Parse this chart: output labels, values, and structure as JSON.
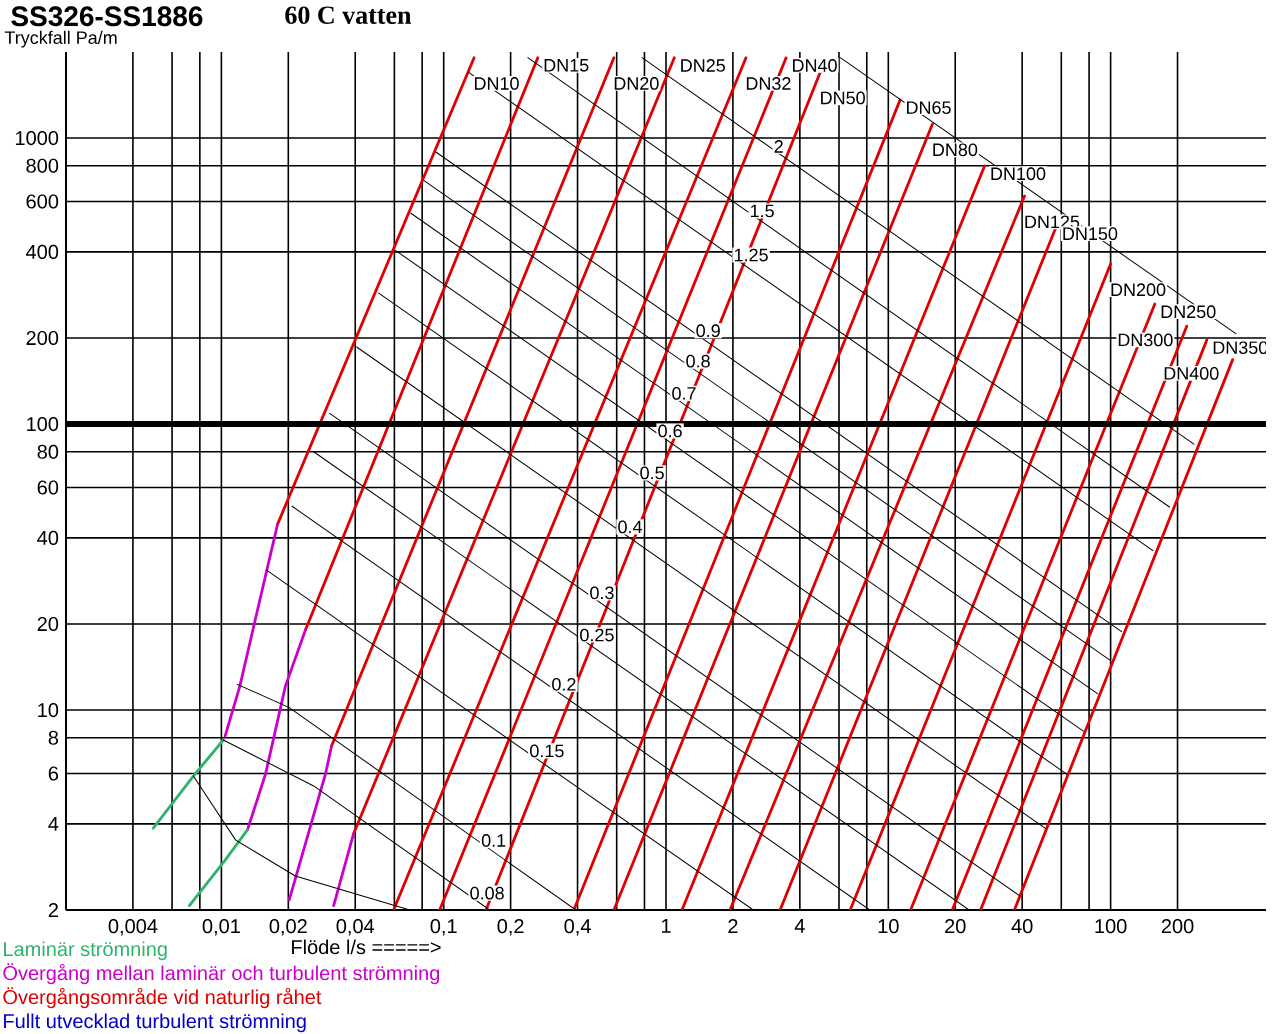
{
  "chart_data": {
    "type": "line",
    "title": "SS326-SS1886",
    "subtitle": "60 C vatten",
    "xlabel": "Flöde   l/s =====>",
    "ylabel": "Tryckfall Pa/m",
    "log": "xy",
    "grid": true,
    "xlim": [
      0.002,
      500
    ],
    "ylim": [
      2,
      2000
    ],
    "xticks": [
      {
        "value": 0.004,
        "label": "0,004"
      },
      {
        "value": 0.006,
        "label": null
      },
      {
        "value": 0.008,
        "label": null
      },
      {
        "value": 0.01,
        "label": "0,01"
      },
      {
        "value": 0.02,
        "label": "0,02"
      },
      {
        "value": 0.04,
        "label": "0,04"
      },
      {
        "value": 0.06,
        "label": null
      },
      {
        "value": 0.08,
        "label": null
      },
      {
        "value": 0.1,
        "label": "0,1"
      },
      {
        "value": 0.2,
        "label": "0,2"
      },
      {
        "value": 0.4,
        "label": "0,4"
      },
      {
        "value": 0.6,
        "label": null
      },
      {
        "value": 0.8,
        "label": null
      },
      1,
      2,
      4,
      {
        "value": 6,
        "label": null
      },
      {
        "value": 8,
        "label": null
      },
      10,
      20,
      40,
      {
        "value": 60,
        "label": null
      },
      {
        "value": 80,
        "label": null
      },
      100,
      200
    ],
    "yticks": [
      2,
      4,
      6,
      8,
      10,
      20,
      40,
      60,
      80,
      100,
      200,
      400,
      600,
      800,
      1000
    ],
    "ref_lines": [
      {
        "axis": "y",
        "value": 100
      }
    ],
    "series": [
      {
        "name": "DN10",
        "color": "#e00000",
        "x": [
          0.0179,
          0.137
        ],
        "values": [
          44.7,
          1910
        ]
      },
      {
        "name": "DN15",
        "color": "#e00000",
        "x": [
          0.0239,
          0.265
        ],
        "values": [
          19.1,
          1910
        ]
      },
      {
        "name": "DN20",
        "color": "#e00000",
        "x": [
          0.0313,
          0.583
        ],
        "values": [
          7.49,
          1910
        ]
      },
      {
        "name": "DN25",
        "color": "#e00000",
        "x": [
          0.0393,
          1.09
        ],
        "values": [
          3.69,
          1910
        ]
      },
      {
        "name": "DN32",
        "color": "#e00000",
        "x": [
          0.0595,
          2.29
        ],
        "values": [
          2,
          1910
        ]
      },
      {
        "name": "DN40",
        "color": "#e00000",
        "x": [
          0.0959,
          3.47
        ],
        "values": [
          2,
          1910
        ]
      },
      {
        "name": "DN50",
        "color": "#e00000",
        "x": [
          0.155,
          4.94
        ],
        "values": [
          2,
          1700
        ]
      },
      {
        "name": "DN65",
        "color": "#e00000",
        "x": [
          0.385,
          11.3
        ],
        "values": [
          2,
          1360
        ]
      },
      {
        "name": "DN80",
        "color": "#e00000",
        "x": [
          0.583,
          15.8
        ],
        "values": [
          2,
          1120
        ]
      },
      {
        "name": "DN100",
        "color": "#e00000",
        "x": [
          1.18,
          27.1
        ],
        "values": [
          2,
          799
        ]
      },
      {
        "name": "DN125",
        "color": "#e00000",
        "x": [
          1.94,
          41.0
        ],
        "values": [
          2,
          627
        ]
      },
      {
        "name": "DN150",
        "color": "#e00000",
        "x": [
          3.26,
          57.1
        ],
        "values": [
          2,
          493
        ]
      },
      {
        "name": "DN200",
        "color": "#e00000",
        "x": [
          6.74,
          100
        ],
        "values": [
          2,
          363
        ]
      },
      {
        "name": "DN250",
        "color": "#e00000",
        "x": [
          12.6,
          158
        ],
        "values": [
          2,
          263
        ]
      },
      {
        "name": "DN300",
        "color": "#e00000",
        "x": [
          19.4,
          220
        ],
        "values": [
          2,
          220
        ]
      },
      {
        "name": "DN350",
        "color": "#e00000",
        "x": [
          26.0,
          271
        ],
        "values": [
          2,
          197
        ]
      },
      {
        "name": "DN400",
        "color": "#e00000",
        "x": [
          36.9,
          354
        ],
        "values": [
          2,
          168
        ]
      },
      {
        "color": "#cc00cc",
        "x": [
          0.0179,
          0.0142,
          0.0121,
          0.0104
        ],
        "values": [
          44.7,
          20.7,
          12.1,
          8.12
        ]
      },
      {
        "color": "#cc00cc",
        "x": [
          0.0239,
          0.0194,
          0.0158,
          0.0131
        ],
        "values": [
          19.1,
          12.1,
          5.98,
          3.81
        ]
      },
      {
        "color": "#cc00cc",
        "x": [
          0.0313,
          0.0294,
          0.0202
        ],
        "values": [
          7.49,
          5.98,
          2.17
        ]
      },
      {
        "color": "#cc00cc",
        "x": [
          0.0393,
          0.032
        ],
        "values": [
          3.69,
          2.07
        ]
      },
      {
        "color": "#2db36b",
        "x": [
          0.0102,
          0.00748,
          0.00494
        ],
        "values": [
          7.86,
          5.88,
          3.87
        ]
      },
      {
        "color": "#2db36b",
        "x": [
          0.0131,
          0.0104,
          0.00718
        ],
        "values": [
          3.81,
          2.99,
          2.07
        ]
      },
      {
        "color": "#000000",
        "x": [
          0.78,
          237
        ],
        "values": [
          1910,
          85.1
        ]
      },
      {
        "color": "#000000",
        "x": [
          0.239,
          184
        ],
        "values": [
          1910,
          51.3
        ]
      },
      {
        "color": "#000000",
        "x": [
          0.129,
          155
        ],
        "values": [
          1700,
          36.1
        ]
      },
      {
        "color": "#000000",
        "x": [
          0.0922,
          112
        ],
        "values": [
          894,
          18.8
        ]
      },
      {
        "color": "#000000",
        "x": [
          0.0816,
          100
        ],
        "values": [
          710,
          14.9
        ]
      },
      {
        "color": "#000000",
        "x": [
          0.0712,
          87.6
        ],
        "values": [
          546,
          11.4
        ]
      },
      {
        "color": "#000000",
        "x": [
          0.0609,
          75.4
        ],
        "values": [
          404,
          8.44
        ]
      },
      {
        "color": "#000000",
        "x": [
          0.051,
          63.5
        ],
        "values": [
          287,
          5.97
        ]
      },
      {
        "color": "#000000",
        "x": [
          0.0406,
          51.1
        ],
        "values": [
          186,
          3.85
        ]
      },
      {
        "color": "#000000",
        "x": [
          0.0307,
          39.0
        ],
        "values": [
          109,
          2.24
        ]
      },
      {
        "color": "#000000",
        "x": [
          0.0261,
          23.1
        ],
        "values": [
          79.9,
          2
        ]
      },
      {
        "color": "#000000",
        "x": [
          0.0208,
          8.25
        ],
        "values": [
          51.6,
          2
        ]
      },
      {
        "color": "#000000",
        "x": [
          0.0159,
          2.47
        ],
        "values": [
          30.9,
          2
        ]
      },
      {
        "color": "#000000",
        "x": [
          0.0118,
          0.0202,
          0.393
        ],
        "values": [
          12.3,
          10.2,
          2
        ]
      },
      {
        "color": "#000000",
        "x": [
          0.0102,
          0.026,
          0.161
        ],
        "values": [
          7.86,
          5.43,
          2
        ]
      },
      {
        "color": "#000000",
        "x": [
          0.00748,
          0.0116,
          0.0215,
          0.0703
        ],
        "values": [
          5.88,
          3.51,
          2.63,
          2
        ]
      },
      {
        "color": "#000000",
        "x": [
          6.08,
          366
        ],
        "values": [
          1910,
          207
        ]
      }
    ],
    "annotations": [
      {
        "text": "2",
        "x": 2.94,
        "y": 935
      },
      {
        "text": "1.5",
        "x": 2.29,
        "y": 556
      },
      {
        "text": "1.25",
        "x": 1.94,
        "y": 390
      },
      {
        "text": "0.9",
        "x": 1.31,
        "y": 212
      },
      {
        "text": "0.8",
        "x": 1.18,
        "y": 166
      },
      {
        "text": "0.7",
        "x": 1.02,
        "y": 128
      },
      {
        "text": "0.6",
        "x": 0.883,
        "y": 94.6
      },
      {
        "text": "0.5",
        "x": 0.733,
        "y": 67.5
      },
      {
        "text": "0.4",
        "x": 0.583,
        "y": 43.7
      },
      {
        "text": "0.3",
        "x": 0.436,
        "y": 25.7
      },
      {
        "text": "0.25",
        "x": 0.393,
        "y": 18.3
      },
      {
        "text": "0.2",
        "x": 0.294,
        "y": 12.3
      },
      {
        "text": "0.15",
        "x": 0.234,
        "y": 7.2
      },
      {
        "text": "0.1",
        "x": 0.142,
        "y": 3.5
      },
      {
        "text": "0.08",
        "x": 0.126,
        "y": 2.29
      },
      "Laminär strömning",
      "Övergång mellan laminär och turbulent strömning",
      "Övergångsområde vid naturlig råhet",
      "Fullt utvecklad turbulent strömning"
    ]
  }
}
